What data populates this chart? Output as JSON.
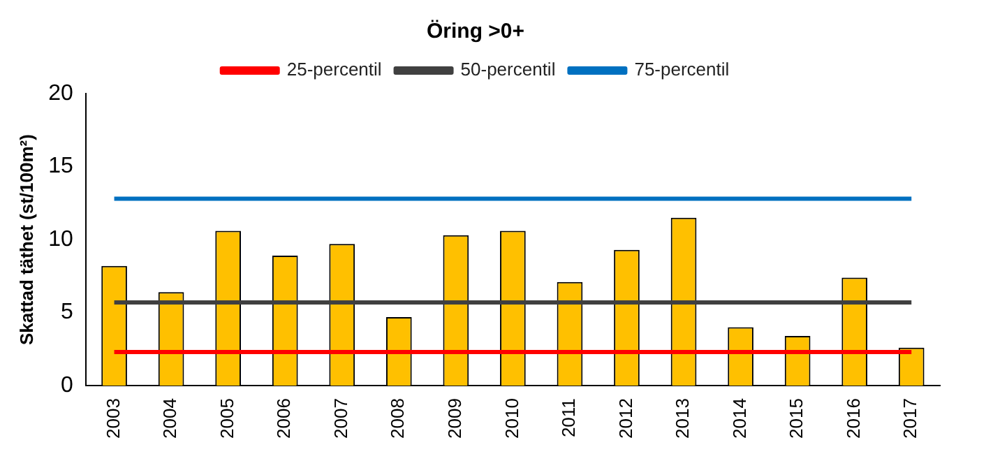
{
  "chart_data": {
    "type": "bar",
    "title": "Öring >0+",
    "ylabel": "Skattad täthet (st/100m²)",
    "categories": [
      "2003",
      "2004",
      "2005",
      "2006",
      "2007",
      "2008",
      "2009",
      "2010",
      "2011",
      "2012",
      "2013",
      "2014",
      "2015",
      "2016",
      "2017"
    ],
    "series": [
      {
        "color": "#ffc000",
        "values": [
          8.2,
          6.4,
          10.6,
          8.9,
          9.7,
          4.7,
          10.3,
          10.6,
          7.1,
          9.3,
          11.5,
          4.0,
          3.4,
          7.4,
          2.6
        ]
      },
      {
        "type": "line",
        "name": "25-percentil",
        "color": "#ff0000",
        "values": [
          2.3,
          2.3,
          2.3,
          2.3,
          2.3,
          2.3,
          2.3,
          2.3,
          2.3,
          2.3,
          2.3,
          2.3,
          2.3,
          2.3,
          2.3
        ]
      },
      {
        "type": "line",
        "name": "50-percentil",
        "color": "#404040",
        "values": [
          5.7,
          5.7,
          5.7,
          5.7,
          5.7,
          5.7,
          5.7,
          5.7,
          5.7,
          5.7,
          5.7,
          5.7,
          5.7,
          5.7,
          5.7
        ]
      },
      {
        "type": "line",
        "name": "75-percentil",
        "color": "#0070c0",
        "values": [
          12.8,
          12.8,
          12.8,
          12.8,
          12.8,
          12.8,
          12.8,
          12.8,
          12.8,
          12.8,
          12.8,
          12.8,
          12.8,
          12.8,
          12.8
        ]
      }
    ],
    "ylim": [
      0,
      20
    ],
    "yticks": [
      0,
      5,
      10,
      15,
      20
    ],
    "grid": false,
    "legend": "top",
    "marker": "none",
    "line_style": "solid"
  }
}
